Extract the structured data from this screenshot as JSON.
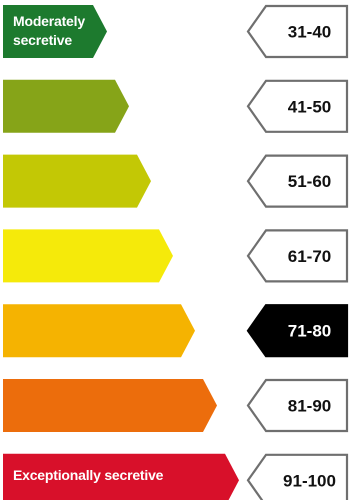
{
  "scale": {
    "top_label": "Moderately secretive",
    "bottom_label": "Exceptionally secretive",
    "bands": [
      {
        "range": "31-40",
        "color": "#1d7a2e",
        "selected": false
      },
      {
        "range": "41-50",
        "color": "#86a418",
        "selected": false
      },
      {
        "range": "51-60",
        "color": "#c3c805",
        "selected": false
      },
      {
        "range": "61-70",
        "color": "#f5ea0a",
        "selected": false
      },
      {
        "range": "71-80",
        "color": "#f5b301",
        "selected": true
      },
      {
        "range": "81-90",
        "color": "#ec6d0c",
        "selected": false
      },
      {
        "range": "91-100",
        "color": "#d8102a",
        "selected": false
      }
    ]
  }
}
